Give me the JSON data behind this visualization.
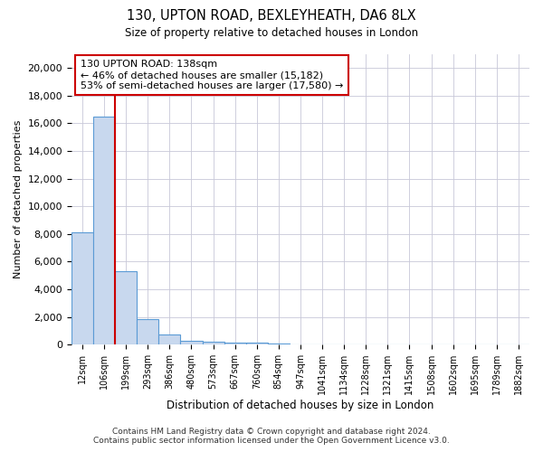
{
  "title1": "130, UPTON ROAD, BEXLEYHEATH, DA6 8LX",
  "title2": "Size of property relative to detached houses in London",
  "xlabel": "Distribution of detached houses by size in London",
  "ylabel": "Number of detached properties",
  "bar_labels": [
    "12sqm",
    "106sqm",
    "199sqm",
    "293sqm",
    "386sqm",
    "480sqm",
    "573sqm",
    "667sqm",
    "760sqm",
    "854sqm",
    "947sqm",
    "1041sqm",
    "1134sqm",
    "1228sqm",
    "1321sqm",
    "1415sqm",
    "1508sqm",
    "1602sqm",
    "1695sqm",
    "1789sqm",
    "1882sqm"
  ],
  "bar_heights": [
    8100,
    16500,
    5300,
    1850,
    750,
    300,
    220,
    170,
    120,
    100,
    0,
    0,
    0,
    0,
    0,
    0,
    0,
    0,
    0,
    0,
    0
  ],
  "bar_color": "#c8d8ee",
  "bar_edge_color": "#5b9bd5",
  "vline_x": 1.5,
  "vline_color": "#cc0000",
  "annotation_title": "130 UPTON ROAD: 138sqm",
  "annotation_line1": "← 46% of detached houses are smaller (15,182)",
  "annotation_line2": "53% of semi-detached houses are larger (17,580) →",
  "annotation_box_color": "#ffffff",
  "annotation_box_edge": "#cc0000",
  "ylim": [
    0,
    21000
  ],
  "yticks": [
    0,
    2000,
    4000,
    6000,
    8000,
    10000,
    12000,
    14000,
    16000,
    18000,
    20000
  ],
  "footer1": "Contains HM Land Registry data © Crown copyright and database right 2024.",
  "footer2": "Contains public sector information licensed under the Open Government Licence v3.0.",
  "background_color": "#ffffff",
  "grid_color": "#c8c8d8"
}
